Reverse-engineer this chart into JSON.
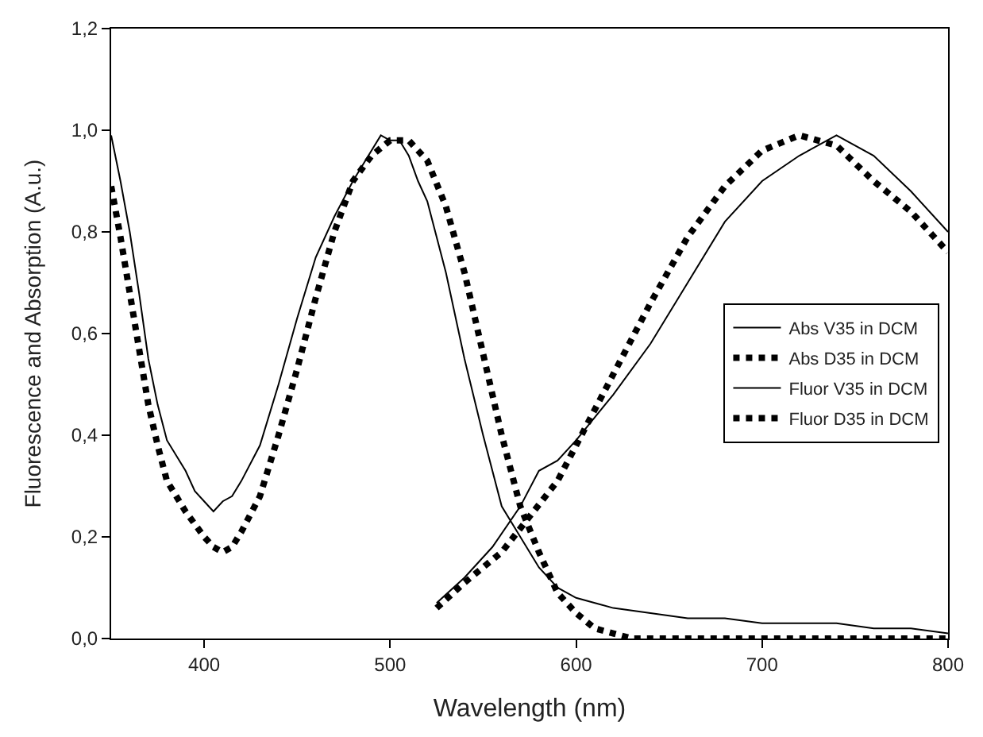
{
  "chart_data": {
    "type": "line",
    "xlabel": "Wavelength (nm)",
    "ylabel": "Fluorescence and Absorption (A.u.)",
    "xlim": [
      350,
      800
    ],
    "xticks": [
      400,
      500,
      600,
      700,
      800
    ],
    "ylim": [
      0,
      1.2
    ],
    "yticks": [
      {
        "value": 0,
        "label": "0,0"
      },
      {
        "value": 0.2,
        "label": "0,2"
      },
      {
        "value": 0.4,
        "label": "0,4"
      },
      {
        "value": 0.6,
        "label": "0,6"
      },
      {
        "value": 0.8,
        "label": "0,8"
      },
      {
        "value": 1.0,
        "label": "1,0"
      },
      {
        "value": 1.2,
        "label": "1,2"
      }
    ],
    "legend": "right",
    "marker": "none",
    "series": [
      {
        "name": "Abs V35 in DCM",
        "color": "#000000",
        "line_style": "solid",
        "x": [
          350,
          355,
          360,
          365,
          370,
          375,
          380,
          390,
          395,
          400,
          405,
          410,
          415,
          420,
          430,
          440,
          450,
          460,
          470,
          480,
          490,
          495,
          500,
          505,
          510,
          515,
          520,
          530,
          540,
          550,
          560,
          570,
          580,
          590,
          600,
          620,
          640,
          660,
          680,
          700,
          720,
          740,
          760,
          780,
          800
        ],
        "values": [
          0.99,
          0.9,
          0.8,
          0.68,
          0.55,
          0.46,
          0.39,
          0.33,
          0.29,
          0.27,
          0.25,
          0.27,
          0.28,
          0.31,
          0.38,
          0.5,
          0.63,
          0.75,
          0.83,
          0.9,
          0.96,
          0.99,
          0.98,
          0.98,
          0.95,
          0.9,
          0.86,
          0.72,
          0.55,
          0.4,
          0.26,
          0.2,
          0.14,
          0.1,
          0.08,
          0.06,
          0.05,
          0.04,
          0.04,
          0.03,
          0.03,
          0.03,
          0.02,
          0.02,
          0.01
        ]
      },
      {
        "name": "Abs D35 in DCM",
        "color": "#000000",
        "line_style": "dotted",
        "x": [
          350,
          355,
          360,
          365,
          370,
          375,
          380,
          390,
          400,
          405,
          410,
          415,
          420,
          430,
          440,
          450,
          460,
          470,
          480,
          490,
          500,
          510,
          520,
          530,
          540,
          550,
          560,
          570,
          580,
          590,
          600,
          610,
          620,
          630,
          700,
          800
        ],
        "values": [
          0.89,
          0.79,
          0.68,
          0.57,
          0.46,
          0.38,
          0.31,
          0.25,
          0.2,
          0.18,
          0.17,
          0.18,
          0.21,
          0.28,
          0.4,
          0.53,
          0.67,
          0.8,
          0.9,
          0.95,
          0.98,
          0.98,
          0.94,
          0.85,
          0.72,
          0.56,
          0.4,
          0.26,
          0.17,
          0.09,
          0.05,
          0.02,
          0.01,
          0.0,
          0.0,
          0.0
        ]
      },
      {
        "name": "Fluor V35 in DCM",
        "color": "#000000",
        "line_style": "solid",
        "x": [
          525,
          540,
          555,
          570,
          580,
          590,
          600,
          620,
          640,
          660,
          680,
          700,
          720,
          740,
          760,
          780,
          800
        ],
        "values": [
          0.07,
          0.12,
          0.18,
          0.26,
          0.33,
          0.35,
          0.39,
          0.48,
          0.58,
          0.7,
          0.82,
          0.9,
          0.95,
          0.99,
          0.95,
          0.88,
          0.8
        ]
      },
      {
        "name": "Fluor D35 in DCM",
        "color": "#000000",
        "line_style": "dotted",
        "x": [
          525,
          540,
          560,
          575,
          590,
          600,
          620,
          640,
          660,
          680,
          700,
          720,
          740,
          760,
          780,
          800
        ],
        "values": [
          0.06,
          0.11,
          0.17,
          0.24,
          0.31,
          0.38,
          0.52,
          0.66,
          0.79,
          0.89,
          0.96,
          0.99,
          0.97,
          0.9,
          0.84,
          0.76
        ]
      }
    ]
  }
}
